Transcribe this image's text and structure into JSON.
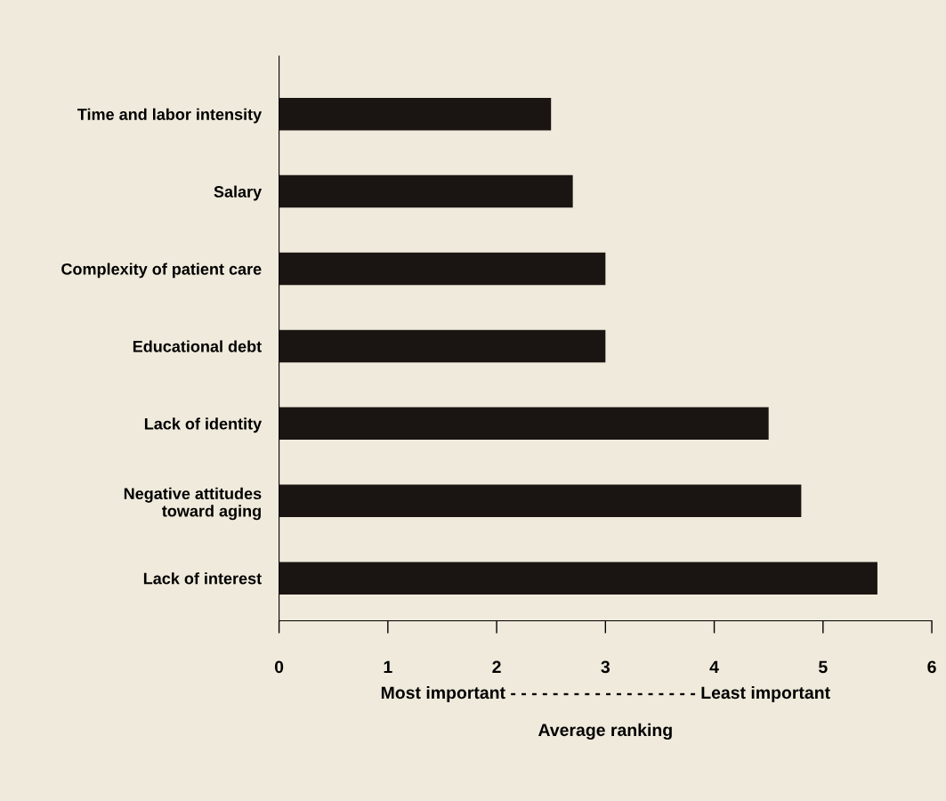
{
  "chart_data": {
    "type": "bar",
    "orientation": "horizontal",
    "categories": [
      "Time and labor intensity",
      "Salary",
      "Complexity of patient care",
      "Educational debt",
      "Lack of identity",
      "Negative attitudes\ntoward aging",
      "Lack of interest"
    ],
    "values": [
      2.5,
      2.7,
      3.0,
      3.0,
      4.5,
      4.8,
      5.5
    ],
    "color": "#1a1412",
    "xlim": [
      0,
      6
    ],
    "xticks": [
      0,
      1,
      2,
      3,
      4,
      5,
      6
    ],
    "xlabel": "Average ranking",
    "annotations": [
      "Most important - - - - - - - - - - - - - - - - - - Least important"
    ],
    "grid": false
  }
}
